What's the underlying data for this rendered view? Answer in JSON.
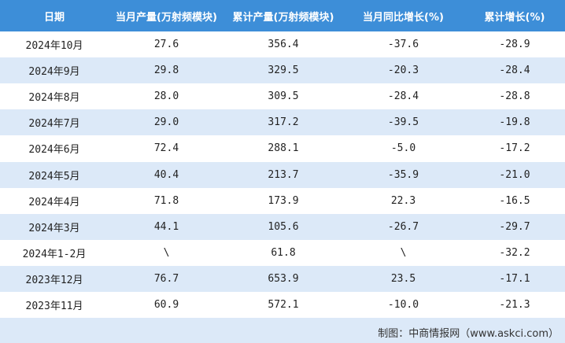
{
  "table": {
    "header": [
      "日期",
      "当月产量(万射频模块)",
      "累计产量(万射频模块)",
      "当月同比增长(%)",
      "累计增长(%)"
    ],
    "rows": [
      [
        "2024年10月",
        "27.6",
        "356.4",
        "-37.6",
        "-28.9"
      ],
      [
        "2024年9月",
        "29.8",
        "329.5",
        "-20.3",
        "-28.4"
      ],
      [
        "2024年8月",
        "28.0",
        "309.5",
        "-28.4",
        "-28.8"
      ],
      [
        "2024年7月",
        "29.0",
        "317.2",
        "-39.5",
        "-19.8"
      ],
      [
        "2024年6月",
        "72.4",
        "288.1",
        "-5.0",
        "-17.2"
      ],
      [
        "2024年5月",
        "40.4",
        "213.7",
        "-35.9",
        "-21.0"
      ],
      [
        "2024年4月",
        "71.8",
        "173.9",
        "22.3",
        "-16.5"
      ],
      [
        "2024年3月",
        "44.1",
        "105.6",
        "-26.7",
        "-29.7"
      ],
      [
        "2024年1-2月",
        "\\",
        "61.8",
        "\\",
        "-32.2"
      ],
      [
        "2023年12月",
        "76.7",
        "653.9",
        "23.5",
        "-17.1"
      ],
      [
        "2023年11月",
        "60.9",
        "572.1",
        "-10.0",
        "-21.3"
      ]
    ]
  },
  "footer": {
    "source": "制图：中商情报网（www.askci.com）"
  }
}
